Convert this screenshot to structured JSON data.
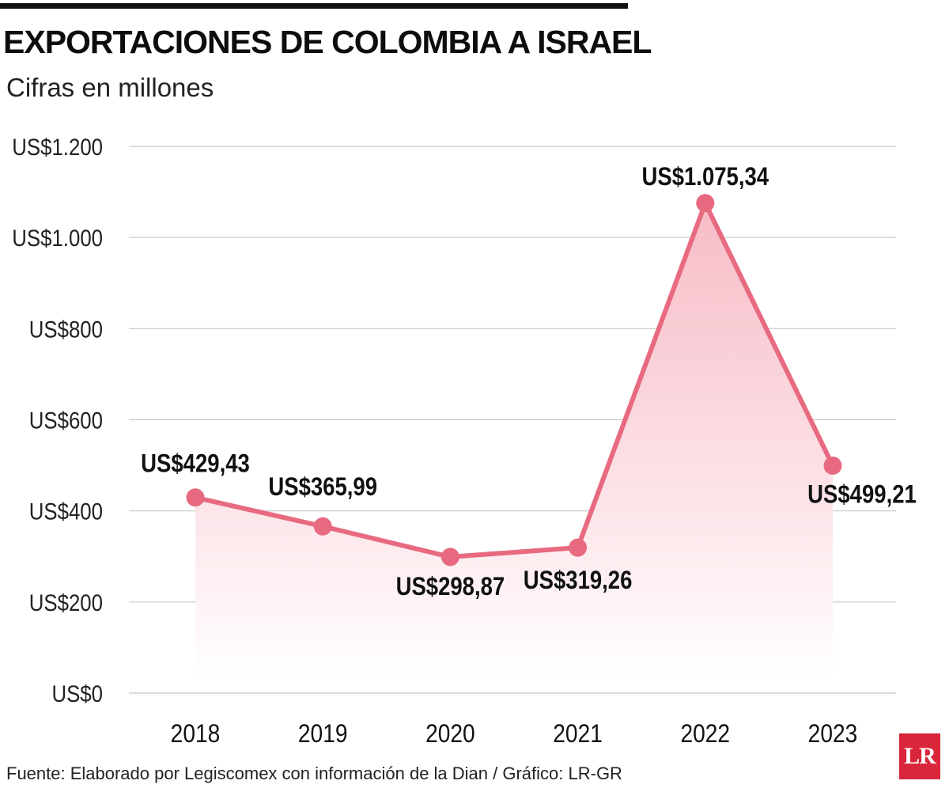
{
  "header": {
    "title": "EXPORTACIONES DE COLOMBIA A ISRAEL",
    "subtitle": "Cifras en millones"
  },
  "footer": {
    "source": "Fuente: Elaborado por Legiscomex con información de la Dian / Gráfico: LR-GR",
    "logo": "LR"
  },
  "colors": {
    "line": "#e86a80",
    "marker": "#e86a80",
    "area_top": "#f7b8c4",
    "gridline": "#c8c8c8",
    "logo_bg": "#d9263a"
  },
  "chart_data": {
    "type": "line",
    "title": "EXPORTACIONES DE COLOMBIA A ISRAEL",
    "subtitle": "Cifras en millones",
    "xlabel": "",
    "ylabel": "",
    "categories": [
      "2018",
      "2019",
      "2020",
      "2021",
      "2022",
      "2023"
    ],
    "series": [
      {
        "values": [
          429.43,
          365.99,
          298.87,
          319.26,
          1075.34,
          499.21
        ],
        "data_labels": [
          "US$429,43",
          "US$365,99",
          "US$298,87",
          "US$319,26",
          "US$1.075,34",
          "US$499,21"
        ]
      }
    ],
    "ylim": [
      0,
      1200
    ],
    "yticks": [
      0,
      200,
      400,
      600,
      800,
      1000,
      1200
    ],
    "ytick_labels": [
      "US$0",
      "US$200",
      "US$400",
      "US$600",
      "US$800",
      "US$1.000",
      "US$1.200"
    ],
    "area_fill": true,
    "grid": true,
    "legend": "none"
  }
}
